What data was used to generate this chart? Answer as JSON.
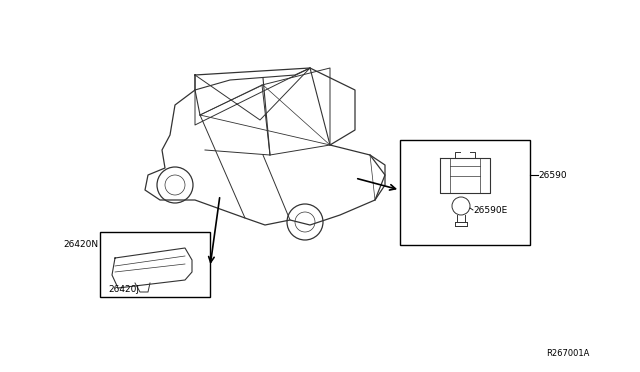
{
  "bg_color": "#ffffff",
  "diagram_color": "#000000",
  "line_color": "#333333",
  "part_label_26590": "26590",
  "part_label_26590E": "26590E",
  "part_label_26420N": "26420N",
  "part_label_26420J": "26420J",
  "ref_label": "R267001A",
  "figsize": [
    6.4,
    3.72
  ],
  "dpi": 100
}
